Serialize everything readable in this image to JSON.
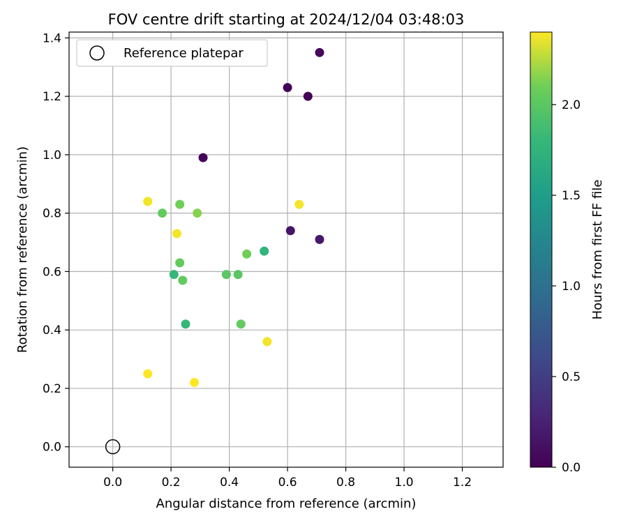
{
  "chart_data": {
    "type": "scatter",
    "title": "FOV centre drift starting at 2024/12/04 03:48:03",
    "xlabel": "Angular distance from reference (arcmin)",
    "ylabel": "Rotation from reference (arcmin)",
    "xlim": [
      -0.15,
      1.34
    ],
    "ylim": [
      -0.07,
      1.42
    ],
    "xticks": [
      "0.0",
      "0.2",
      "0.4",
      "0.6",
      "0.8",
      "1.0",
      "1.2"
    ],
    "yticks": [
      "0.0",
      "0.2",
      "0.4",
      "0.6",
      "0.8",
      "1.0",
      "1.2",
      "1.4"
    ],
    "grid": true,
    "legend": {
      "placement": "top-left",
      "entries": [
        "Reference platepar"
      ]
    },
    "reference_point": {
      "x": 0.0,
      "y": 0.0
    },
    "colorbar": {
      "label": "Hours from first FF file",
      "range": [
        0.0,
        2.4
      ],
      "ticks": [
        "0.0",
        "0.5",
        "1.0",
        "1.5",
        "2.0"
      ],
      "colormap": "viridis"
    },
    "points": [
      {
        "x": 0.71,
        "y": 1.35,
        "hours": 0.05
      },
      {
        "x": 0.6,
        "y": 1.23,
        "hours": 0.0
      },
      {
        "x": 0.67,
        "y": 1.2,
        "hours": 0.02
      },
      {
        "x": 0.31,
        "y": 0.99,
        "hours": 0.03
      },
      {
        "x": 0.61,
        "y": 0.74,
        "hours": 0.15
      },
      {
        "x": 0.71,
        "y": 0.71,
        "hours": 0.18
      },
      {
        "x": 0.52,
        "y": 0.67,
        "hours": 1.75
      },
      {
        "x": 0.21,
        "y": 0.59,
        "hours": 1.8
      },
      {
        "x": 0.25,
        "y": 0.42,
        "hours": 1.8
      },
      {
        "x": 0.46,
        "y": 0.66,
        "hours": 2.1
      },
      {
        "x": 0.39,
        "y": 0.59,
        "hours": 2.0
      },
      {
        "x": 0.43,
        "y": 0.59,
        "hours": 2.0
      },
      {
        "x": 0.23,
        "y": 0.63,
        "hours": 2.05
      },
      {
        "x": 0.24,
        "y": 0.57,
        "hours": 2.05
      },
      {
        "x": 0.44,
        "y": 0.42,
        "hours": 2.05
      },
      {
        "x": 0.17,
        "y": 0.8,
        "hours": 2.05
      },
      {
        "x": 0.23,
        "y": 0.83,
        "hours": 2.1
      },
      {
        "x": 0.29,
        "y": 0.8,
        "hours": 2.15
      },
      {
        "x": 0.12,
        "y": 0.84,
        "hours": 2.38
      },
      {
        "x": 0.22,
        "y": 0.73,
        "hours": 2.38
      },
      {
        "x": 0.64,
        "y": 0.83,
        "hours": 2.38
      },
      {
        "x": 0.53,
        "y": 0.36,
        "hours": 2.38
      },
      {
        "x": 0.12,
        "y": 0.25,
        "hours": 2.4
      },
      {
        "x": 0.28,
        "y": 0.22,
        "hours": 2.4
      }
    ]
  }
}
